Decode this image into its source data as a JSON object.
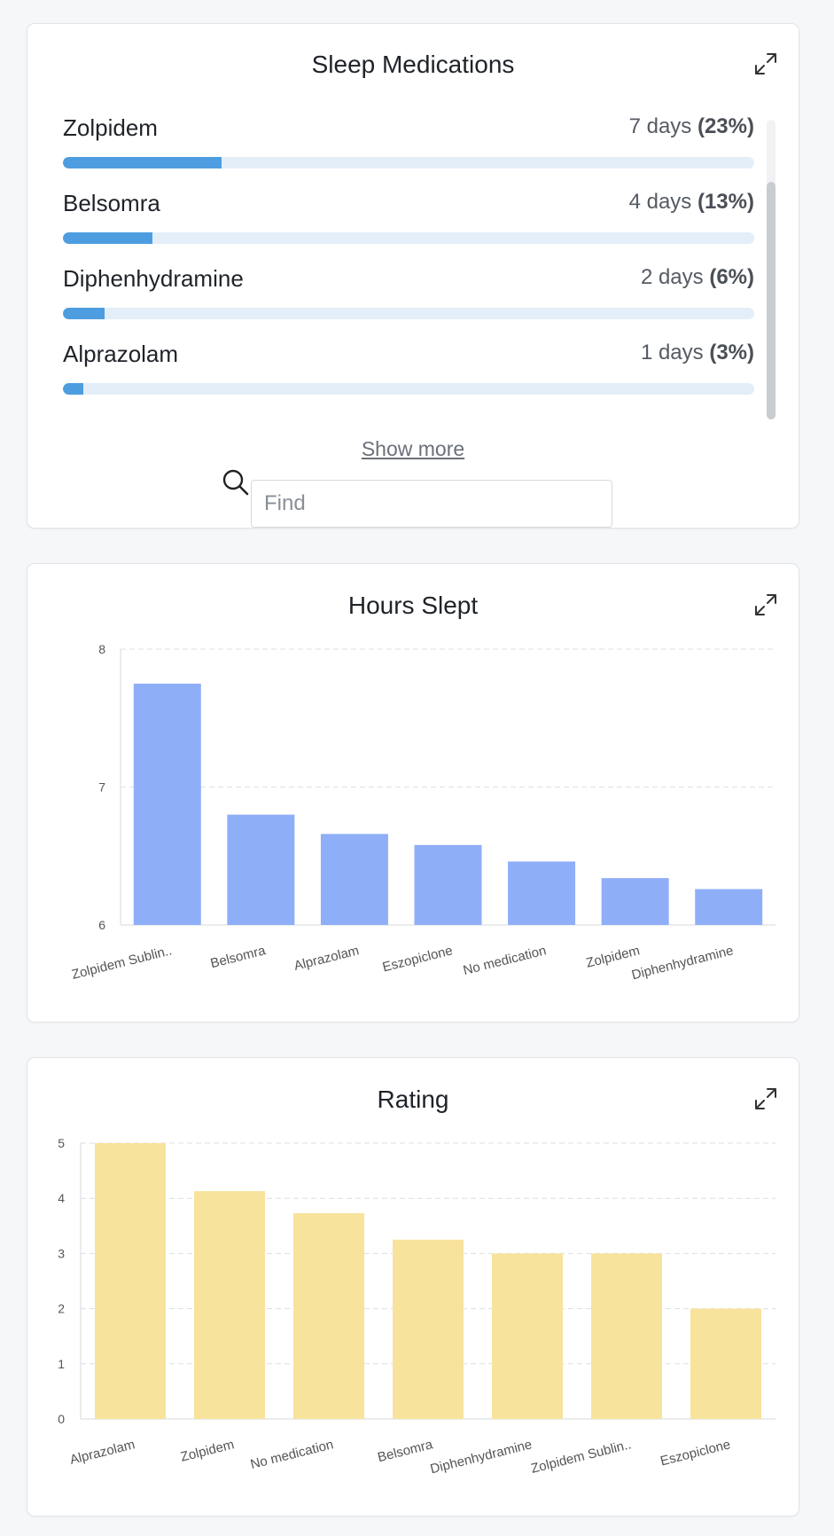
{
  "medications_card": {
    "title": "Sleep Medications",
    "items": [
      {
        "name": "Zolpidem",
        "days": "7 days",
        "pct": "(23%)",
        "fraction": 0.23
      },
      {
        "name": "Belsomra",
        "days": "4 days",
        "pct": "(13%)",
        "fraction": 0.13
      },
      {
        "name": "Diphenhydramine",
        "days": "2 days",
        "pct": "(6%)",
        "fraction": 0.06
      },
      {
        "name": "Alprazolam",
        "days": "1 days",
        "pct": "(3%)",
        "fraction": 0.03
      }
    ],
    "show_more_label": "Show more",
    "search": {
      "placeholder": "Find",
      "value": ""
    }
  },
  "hours_card": {
    "title": "Hours Slept"
  },
  "rating_card": {
    "title": "Rating"
  },
  "colors": {
    "progress_fill": "#4d9de0",
    "progress_track": "#e3eef9",
    "hours_bar": "#8faef8",
    "rating_bar": "#f8e39d"
  },
  "chart_data": [
    {
      "type": "bar",
      "title": "Hours Slept",
      "categories": [
        "Zolpidem Sublin..",
        "Belsomra",
        "Alprazolam",
        "Eszopiclone",
        "No medication",
        "Zolpidem",
        "Diphenhydramine"
      ],
      "values": [
        7.75,
        6.8,
        6.66,
        6.58,
        6.46,
        6.34,
        6.26
      ],
      "ylim": [
        6,
        8
      ],
      "yticks": [
        "6",
        "7",
        "8"
      ],
      "grid": true
    },
    {
      "type": "bar",
      "title": "Rating",
      "categories": [
        "Alprazolam",
        "Zolpidem",
        "No medication",
        "Belsomra",
        "Diphenhydramine",
        "Zolpidem Sublin..",
        "Eszopiclone"
      ],
      "values": [
        5,
        4.13,
        3.73,
        3.25,
        3.0,
        3.0,
        2.0
      ],
      "ylim": [
        0,
        5
      ],
      "yticks": [
        "0",
        "1",
        "2",
        "3",
        "4",
        "5"
      ],
      "grid": true
    }
  ]
}
